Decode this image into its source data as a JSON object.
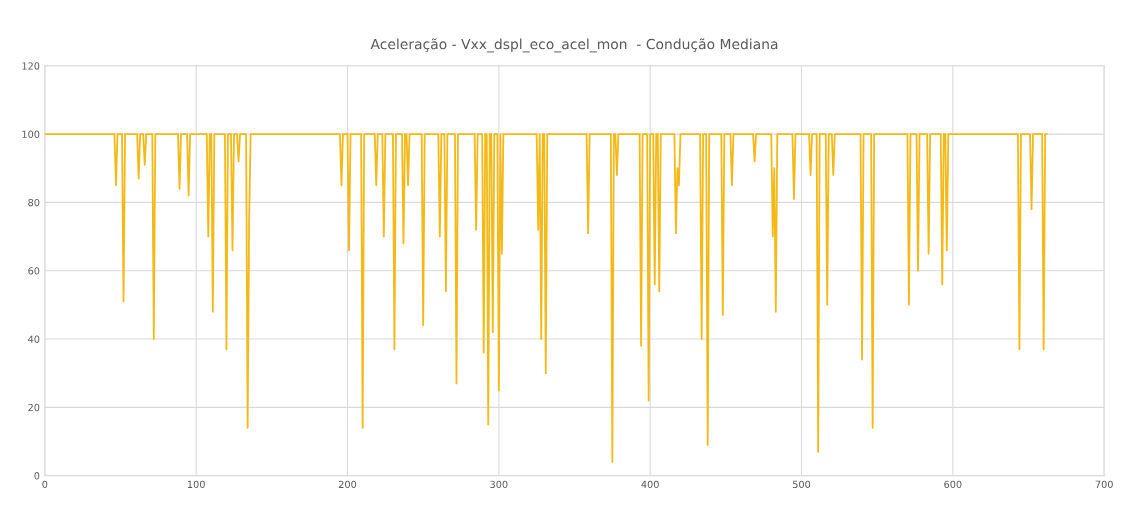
{
  "chart_data": {
    "type": "line",
    "title": "Aceleração - Vxx_dspl_eco_acel_mon  - Condução Mediana",
    "x": [
      0,
      46,
      47,
      48,
      51,
      52,
      53,
      61,
      62,
      63,
      65,
      66,
      67,
      71,
      72,
      73,
      88,
      89,
      90,
      94,
      95,
      96,
      107,
      108,
      109,
      110,
      111,
      112,
      119,
      120,
      121,
      123,
      124,
      125,
      127,
      128,
      129,
      133,
      134,
      135,
      136,
      195,
      196,
      197,
      200,
      201,
      202,
      209,
      210,
      211,
      218,
      219,
      220,
      223,
      224,
      225,
      230,
      231,
      232,
      236,
      237,
      238,
      239,
      240,
      241,
      249,
      250,
      251,
      260,
      261,
      262,
      264,
      265,
      266,
      271,
      272,
      273,
      284,
      285,
      286,
      289,
      290,
      291,
      292,
      293,
      294,
      295,
      296,
      297,
      299,
      300,
      301,
      302,
      303,
      325,
      326,
      327,
      328,
      329,
      330,
      331,
      332,
      358,
      359,
      360,
      374,
      375,
      376,
      377,
      378,
      379,
      393,
      394,
      395,
      398,
      399,
      400,
      402,
      403,
      404,
      405,
      406,
      407,
      416,
      417,
      418,
      419,
      420,
      433,
      434,
      435,
      437,
      438,
      439,
      447,
      448,
      449,
      453,
      454,
      455,
      468,
      469,
      470,
      480,
      481,
      482,
      483,
      484,
      494,
      495,
      496,
      505,
      506,
      507,
      510,
      511,
      512,
      516,
      517,
      518,
      520,
      521,
      522,
      539,
      540,
      541,
      546,
      547,
      548,
      570,
      571,
      572,
      576,
      577,
      578,
      583,
      584,
      585,
      592,
      593,
      594,
      595,
      596,
      597,
      643,
      644,
      645,
      651,
      652,
      653,
      659,
      660,
      661,
      662
    ],
    "series": [
      {
        "color": "#f4b817",
        "values": [
          100,
          100,
          85,
          100,
          100,
          51,
          100,
          100,
          87,
          100,
          100,
          91,
          100,
          100,
          40,
          100,
          100,
          84,
          100,
          100,
          82,
          100,
          100,
          70,
          100,
          100,
          48,
          100,
          100,
          37,
          100,
          100,
          66,
          100,
          100,
          92,
          100,
          100,
          14,
          75,
          100,
          100,
          85,
          100,
          100,
          66,
          100,
          100,
          14,
          100,
          100,
          85,
          100,
          100,
          70,
          100,
          100,
          37,
          100,
          100,
          68,
          100,
          100,
          85,
          100,
          100,
          44,
          100,
          100,
          70,
          100,
          100,
          54,
          100,
          100,
          27,
          100,
          100,
          72,
          100,
          100,
          36,
          100,
          100,
          15,
          100,
          100,
          42,
          100,
          100,
          25,
          100,
          65,
          100,
          100,
          72,
          100,
          40,
          100,
          100,
          30,
          100,
          100,
          71,
          100,
          100,
          4,
          100,
          100,
          88,
          100,
          100,
          38,
          100,
          100,
          22,
          100,
          100,
          56,
          100,
          100,
          54,
          100,
          100,
          71,
          90,
          85,
          100,
          100,
          40,
          100,
          100,
          9,
          100,
          100,
          47,
          100,
          100,
          85,
          100,
          100,
          92,
          100,
          100,
          70,
          90,
          48,
          100,
          100,
          81,
          100,
          100,
          88,
          100,
          100,
          7,
          100,
          100,
          50,
          100,
          100,
          88,
          100,
          100,
          34,
          100,
          100,
          14,
          100,
          100,
          50,
          100,
          100,
          60,
          100,
          100,
          65,
          100,
          100,
          56,
          100,
          100,
          66,
          100,
          100,
          37,
          100,
          100,
          78,
          100,
          100,
          37,
          100,
          100
        ]
      }
    ],
    "xlim": [
      0,
      700
    ],
    "xticks": [
      0,
      100,
      200,
      300,
      400,
      500,
      600,
      700
    ],
    "ylim": [
      0,
      120
    ],
    "yticks": [
      0,
      20,
      40,
      60,
      80,
      100,
      120
    ],
    "grid": true,
    "marker": "none",
    "line_style": "solid"
  }
}
